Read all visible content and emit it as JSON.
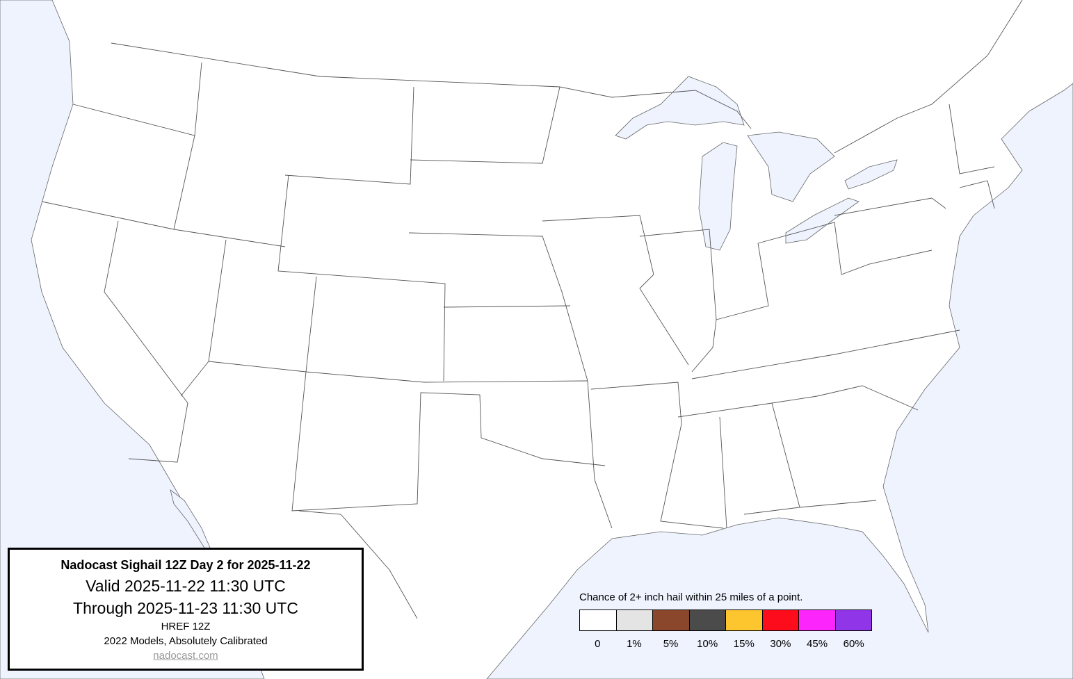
{
  "map": {
    "ocean_color": "#eef3fe",
    "land_color": "#ffffff",
    "border_color": "#555555"
  },
  "info": {
    "title": "Nadocast Sighail 12Z Day 2 for 2025-11-22",
    "valid": "Valid 2025-11-22 11:30 UTC",
    "through": "Through 2025-11-23 11:30 UTC",
    "model": "HREF 12Z",
    "calibration": "2022 Models, Absolutely Calibrated",
    "link": "nadocast.com"
  },
  "legend": {
    "title": "Chance of 2+ inch hail within 25 miles of a point.",
    "items": [
      {
        "label": "0",
        "color": "#ffffff"
      },
      {
        "label": "1%",
        "color": "#e4e4e4"
      },
      {
        "label": "5%",
        "color": "#8b472b"
      },
      {
        "label": "10%",
        "color": "#4b4b4b"
      },
      {
        "label": "15%",
        "color": "#fec62e"
      },
      {
        "label": "30%",
        "color": "#fd0d1b"
      },
      {
        "label": "45%",
        "color": "#fc25fc"
      },
      {
        "label": "60%",
        "color": "#9036e8"
      }
    ]
  }
}
